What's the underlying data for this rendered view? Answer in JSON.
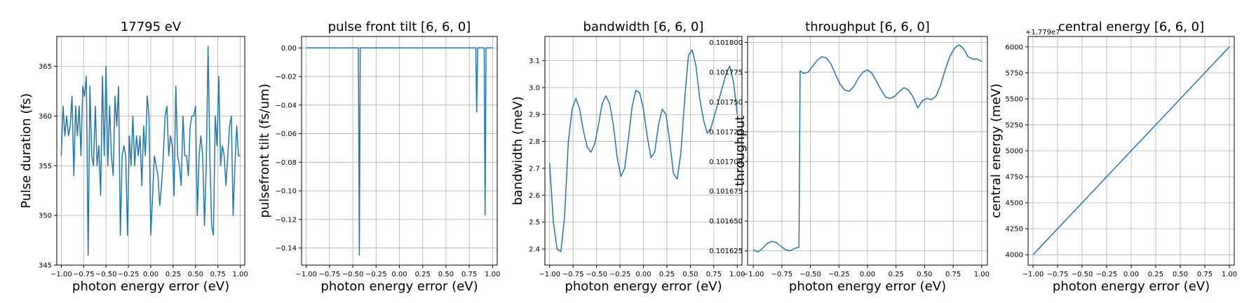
{
  "figure": {
    "background": "#ffffff",
    "line_color": "#1f77b4",
    "grid_color": "#b0b0b0"
  },
  "chart_data": [
    {
      "type": "line",
      "title": "17795 eV",
      "xlabel": "photon energy error (eV)",
      "ylabel": "Pulse duration (fs)",
      "xlim": [
        -1.05,
        1.05
      ],
      "ylim": [
        345,
        368
      ],
      "xticks": [
        -1.0,
        -0.75,
        -0.5,
        -0.25,
        0.0,
        0.25,
        0.5,
        0.75,
        1.0
      ],
      "xtick_labels": [
        "−1.00",
        "−0.75",
        "−0.50",
        "−0.25",
        "0.00",
        "0.25",
        "0.50",
        "0.75",
        "1.00"
      ],
      "yticks": [
        345,
        350,
        355,
        360,
        365
      ],
      "ytick_labels": [
        "345",
        "350",
        "355",
        "360",
        "365"
      ],
      "offset_text": "",
      "grid": true,
      "series": [
        {
          "x": [
            -1.0,
            -0.98,
            -0.96,
            -0.94,
            -0.92,
            -0.9,
            -0.88,
            -0.86,
            -0.84,
            -0.82,
            -0.8,
            -0.78,
            -0.76,
            -0.74,
            -0.72,
            -0.7,
            -0.68,
            -0.66,
            -0.64,
            -0.62,
            -0.6,
            -0.58,
            -0.56,
            -0.54,
            -0.52,
            -0.5,
            -0.48,
            -0.46,
            -0.44,
            -0.42,
            -0.4,
            -0.38,
            -0.36,
            -0.34,
            -0.32,
            -0.3,
            -0.28,
            -0.26,
            -0.24,
            -0.22,
            -0.2,
            -0.18,
            -0.16,
            -0.14,
            -0.12,
            -0.1,
            -0.08,
            -0.06,
            -0.04,
            -0.02,
            0.0,
            0.02,
            0.04,
            0.06,
            0.08,
            0.1,
            0.12,
            0.14,
            0.16,
            0.18,
            0.2,
            0.22,
            0.24,
            0.26,
            0.28,
            0.3,
            0.32,
            0.34,
            0.36,
            0.38,
            0.4,
            0.42,
            0.44,
            0.46,
            0.48,
            0.5,
            0.52,
            0.54,
            0.56,
            0.58,
            0.6,
            0.62,
            0.64,
            0.66,
            0.68,
            0.7,
            0.72,
            0.74,
            0.76,
            0.78,
            0.8,
            0.82,
            0.84,
            0.86,
            0.88,
            0.9,
            0.92,
            0.94,
            0.96,
            0.98,
            1.0
          ],
          "y": [
            356,
            361,
            358,
            360,
            358,
            359,
            362,
            354,
            361,
            358,
            361,
            356,
            363,
            362,
            364,
            346,
            363,
            356,
            355,
            361,
            355,
            357,
            352,
            364,
            356,
            365,
            355,
            361,
            356,
            354,
            362,
            359,
            363,
            348,
            356,
            357,
            356,
            348,
            358,
            355,
            360,
            355,
            358,
            356,
            358,
            353,
            359,
            356,
            362,
            360,
            348,
            352,
            356,
            355,
            354,
            351,
            353,
            356,
            360,
            361,
            356,
            358,
            357,
            352,
            363,
            356,
            355,
            353,
            360,
            356,
            356,
            354,
            359,
            360,
            360,
            361,
            350,
            356,
            358,
            356,
            349,
            355,
            367,
            356,
            349,
            348,
            360,
            357,
            364,
            355,
            357,
            356,
            353,
            356,
            359,
            360,
            350,
            355,
            359,
            356,
            356
          ]
        }
      ]
    },
    {
      "type": "line",
      "title": "pulse front tilt [6, 6, 0]",
      "xlabel": "photon energy error (eV)",
      "ylabel": "pulsefront tilt (fs/um)",
      "xlim": [
        -1.05,
        1.05
      ],
      "ylim": [
        -0.152,
        0.008
      ],
      "xticks": [
        -1.0,
        -0.75,
        -0.5,
        -0.25,
        0.0,
        0.25,
        0.5,
        0.75,
        1.0
      ],
      "xtick_labels": [
        "−1.00",
        "−0.75",
        "−0.50",
        "−0.25",
        "0.00",
        "0.25",
        "0.50",
        "0.75",
        "1.00"
      ],
      "yticks": [
        0.0,
        -0.02,
        -0.04,
        -0.06,
        -0.08,
        -0.1,
        -0.12,
        -0.14
      ],
      "ytick_labels": [
        "0.00",
        "−0.02",
        "−0.04",
        "−0.06",
        "−0.08",
        "−0.10",
        "−0.12",
        "−0.14"
      ],
      "offset_text": "",
      "grid": true,
      "series": [
        {
          "x": [
            -1.0,
            -0.45,
            -0.44,
            -0.43,
            -0.42,
            0.8,
            0.81,
            0.82,
            0.83,
            0.84,
            0.86,
            0.9,
            0.91,
            0.92,
            0.93,
            0.95,
            0.96,
            0.97,
            1.0
          ],
          "y": [
            0.0,
            0.0,
            0.0,
            -0.145,
            0.0,
            0.0,
            0.0,
            0.0,
            -0.045,
            0.0,
            0.0,
            0.0,
            0.0,
            -0.117,
            0.0,
            0.0,
            0.0,
            0.0,
            0.0
          ]
        }
      ]
    },
    {
      "type": "line",
      "title": "bandwidth [6, 6, 0]",
      "xlabel": "photon energy error (eV)",
      "ylabel": "bandwidth (meV)",
      "xlim": [
        -1.05,
        1.05
      ],
      "ylim": [
        2.34,
        3.19
      ],
      "xticks": [
        -1.0,
        -0.75,
        -0.5,
        -0.25,
        0.0,
        0.25,
        0.5,
        0.75,
        1.0
      ],
      "xtick_labels": [
        "−1.00",
        "−0.75",
        "−0.50",
        "−0.25",
        "0.00",
        "0.25",
        "0.50",
        "0.75",
        "1.00"
      ],
      "yticks": [
        2.4,
        2.5,
        2.6,
        2.7,
        2.8,
        2.9,
        3.0,
        3.1
      ],
      "ytick_labels": [
        "2.4",
        "2.5",
        "2.6",
        "2.7",
        "2.8",
        "2.9",
        "3.0",
        "3.1"
      ],
      "offset_text": "",
      "grid": true,
      "series": [
        {
          "x": [
            -1.0,
            -0.96,
            -0.92,
            -0.88,
            -0.84,
            -0.8,
            -0.76,
            -0.72,
            -0.68,
            -0.64,
            -0.6,
            -0.56,
            -0.52,
            -0.48,
            -0.44,
            -0.4,
            -0.36,
            -0.32,
            -0.28,
            -0.24,
            -0.2,
            -0.16,
            -0.12,
            -0.08,
            -0.04,
            0.0,
            0.04,
            0.08,
            0.12,
            0.16,
            0.2,
            0.24,
            0.28,
            0.32,
            0.36,
            0.4,
            0.44,
            0.48,
            0.52,
            0.56,
            0.6,
            0.64,
            0.68,
            0.72,
            0.76,
            0.8,
            0.84,
            0.88,
            0.92,
            0.96,
            1.0
          ],
          "y": [
            2.72,
            2.5,
            2.4,
            2.39,
            2.52,
            2.8,
            2.92,
            2.96,
            2.92,
            2.84,
            2.78,
            2.76,
            2.79,
            2.86,
            2.94,
            2.97,
            2.94,
            2.86,
            2.74,
            2.67,
            2.7,
            2.81,
            2.93,
            2.99,
            2.98,
            2.92,
            2.82,
            2.74,
            2.76,
            2.86,
            2.92,
            2.9,
            2.8,
            2.68,
            2.66,
            2.76,
            2.96,
            3.12,
            3.14,
            3.08,
            2.96,
            2.88,
            2.83,
            2.85,
            2.9,
            2.95,
            3.0,
            3.05,
            3.08,
            3.02,
            2.9
          ]
        }
      ]
    },
    {
      "type": "line",
      "title": "throughput [6, 6, 0]",
      "xlabel": "photon energy error (eV)",
      "ylabel": "throughput",
      "xlim": [
        -1.05,
        1.05
      ],
      "ylim": [
        0.101613,
        0.101805
      ],
      "xticks": [
        -1.0,
        -0.75,
        -0.5,
        -0.25,
        0.0,
        0.25,
        0.5,
        0.75,
        1.0
      ],
      "xtick_labels": [
        "−1.00",
        "−0.75",
        "−0.50",
        "−0.25",
        "0.00",
        "0.25",
        "0.50",
        "0.75",
        "1.00"
      ],
      "yticks": [
        0.101625,
        0.10165,
        0.101675,
        0.1017,
        0.101725,
        0.10175,
        0.101775,
        0.1018
      ],
      "ytick_labels": [
        "0.101625",
        "0.101650",
        "0.101675",
        "0.101700",
        "0.101725",
        "0.101750",
        "0.101775",
        "0.101800"
      ],
      "offset_text": "",
      "grid": true,
      "series": [
        {
          "x": [
            -1.0,
            -0.96,
            -0.92,
            -0.88,
            -0.84,
            -0.8,
            -0.76,
            -0.72,
            -0.68,
            -0.64,
            -0.6,
            -0.59,
            -0.56,
            -0.52,
            -0.48,
            -0.44,
            -0.4,
            -0.36,
            -0.32,
            -0.28,
            -0.24,
            -0.2,
            -0.16,
            -0.12,
            -0.08,
            -0.04,
            0.0,
            0.04,
            0.08,
            0.12,
            0.16,
            0.2,
            0.24,
            0.28,
            0.32,
            0.36,
            0.4,
            0.44,
            0.48,
            0.52,
            0.56,
            0.6,
            0.64,
            0.68,
            0.72,
            0.76,
            0.8,
            0.84,
            0.88,
            0.92,
            0.96,
            1.0
          ],
          "y": [
            0.101626,
            0.101624,
            0.101627,
            0.101631,
            0.101633,
            0.101632,
            0.101629,
            0.101626,
            0.101625,
            0.101627,
            0.101628,
            0.101776,
            0.101774,
            0.101775,
            0.10178,
            0.101785,
            0.101788,
            0.101787,
            0.101782,
            0.101773,
            0.101765,
            0.10176,
            0.101759,
            0.101763,
            0.10177,
            0.101775,
            0.101777,
            0.101774,
            0.101767,
            0.10176,
            0.101754,
            0.101753,
            0.101755,
            0.101759,
            0.101762,
            0.10176,
            0.101754,
            0.101745,
            0.101751,
            0.101753,
            0.101752,
            0.101755,
            0.101764,
            0.101777,
            0.101788,
            0.101795,
            0.101798,
            0.101795,
            0.101788,
            0.101786,
            0.101786,
            0.101784
          ]
        }
      ]
    },
    {
      "type": "line",
      "title": "central energy [6, 6, 0]",
      "xlabel": "photon energy error (eV)",
      "ylabel": "central energy (meV)",
      "xlim": [
        -1.05,
        1.05
      ],
      "ylim": [
        3900,
        6100
      ],
      "xticks": [
        -1.0,
        -0.75,
        -0.5,
        -0.25,
        0.0,
        0.25,
        0.5,
        0.75,
        1.0
      ],
      "xtick_labels": [
        "−1.00",
        "−0.75",
        "−0.50",
        "−0.25",
        "0.00",
        "0.25",
        "0.50",
        "0.75",
        "1.00"
      ],
      "yticks": [
        4000,
        4250,
        4500,
        4750,
        5000,
        5250,
        5500,
        5750,
        6000
      ],
      "ytick_labels": [
        "4000",
        "4250",
        "4500",
        "4750",
        "5000",
        "5250",
        "5500",
        "5750",
        "6000"
      ],
      "offset_text": "+1.779e7",
      "grid": true,
      "series": [
        {
          "x": [
            -1.0,
            1.0
          ],
          "y": [
            4000,
            6000
          ]
        }
      ]
    }
  ]
}
